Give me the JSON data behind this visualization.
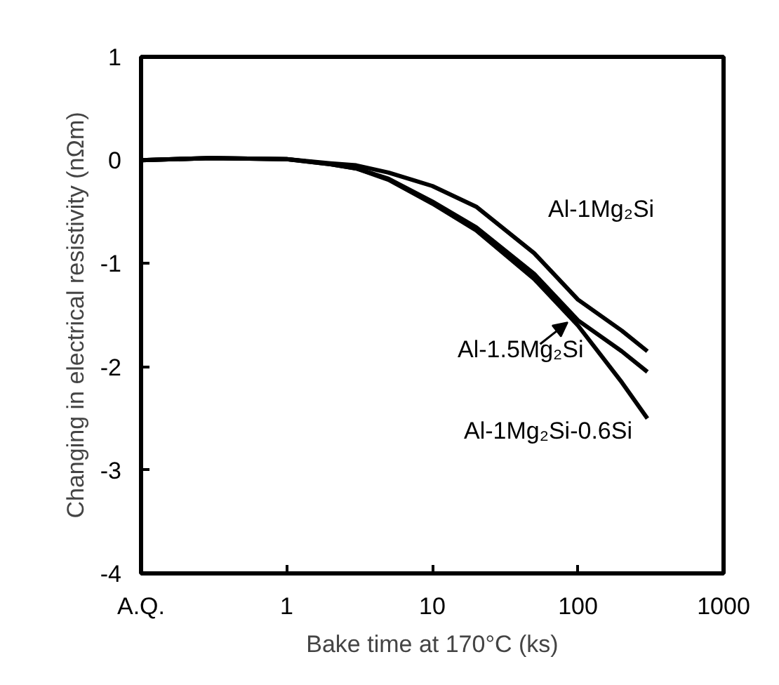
{
  "chart_data": {
    "type": "line",
    "xlabel": "Bake time at 170°C (ks)",
    "ylabel": "Changing in electrical resistivity (nΩm)",
    "log": "x",
    "xlim": [
      0.1,
      1000
    ],
    "xticks": [
      {
        "value": 0.1,
        "label": "A.Q."
      },
      1,
      10,
      100,
      1000
    ],
    "ylim": [
      -4,
      1
    ],
    "yticks": [
      1,
      0,
      -1,
      -2,
      -3,
      -4
    ],
    "grid": false,
    "marker": "none",
    "line_style": "solid",
    "series": [
      {
        "name": "Al-1Mg₂Si",
        "color": "#000000",
        "x": [
          0.1,
          0.3,
          1,
          2,
          3,
          5,
          10,
          20,
          50,
          100,
          200,
          300
        ],
        "values": [
          0.0,
          0.02,
          0.01,
          -0.03,
          -0.05,
          -0.12,
          -0.25,
          -0.45,
          -0.9,
          -1.35,
          -1.65,
          -1.85
        ]
      },
      {
        "name": "Al-1.5Mg₂Si",
        "color": "#000000",
        "x": [
          0.1,
          0.3,
          1,
          2,
          3,
          5,
          10,
          20,
          50,
          100,
          200,
          300
        ],
        "values": [
          0.0,
          0.02,
          0.01,
          -0.04,
          -0.08,
          -0.18,
          -0.4,
          -0.65,
          -1.1,
          -1.55,
          -1.85,
          -2.05
        ]
      },
      {
        "name": "Al-1Mg₂Si-0.6Si",
        "color": "#000000",
        "x": [
          0.1,
          0.3,
          1,
          2,
          3,
          5,
          10,
          20,
          50,
          100,
          200,
          300
        ],
        "values": [
          0.0,
          0.02,
          0.01,
          -0.04,
          -0.08,
          -0.19,
          -0.42,
          -0.68,
          -1.15,
          -1.6,
          -2.15,
          -2.5
        ]
      }
    ]
  }
}
